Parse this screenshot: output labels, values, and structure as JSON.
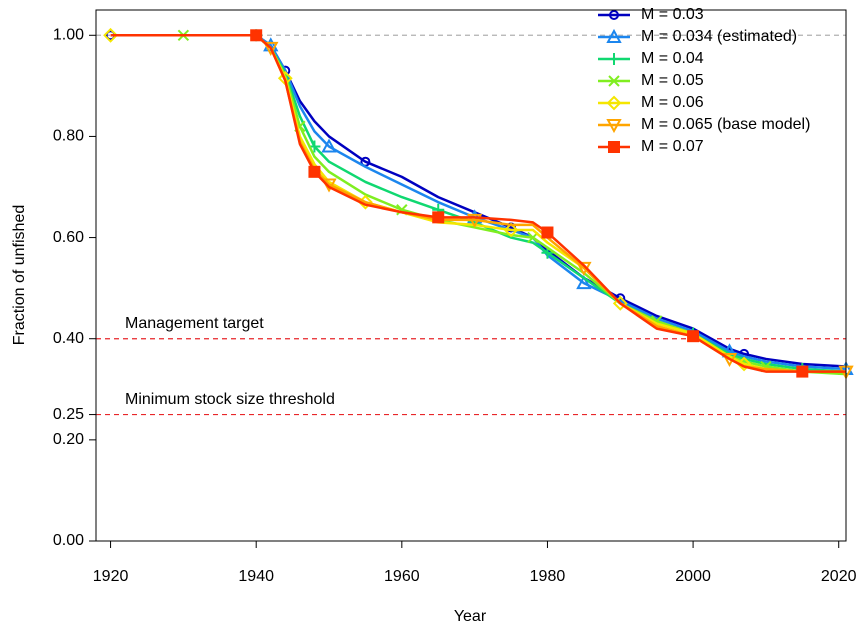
{
  "chart_data": {
    "type": "line",
    "x_label": "Year",
    "y_label": "Fraction of unfished",
    "xlim": [
      1918,
      2021
    ],
    "ylim": [
      0,
      1.05
    ],
    "xticks": [
      1920,
      1940,
      1960,
      1980,
      2000,
      2020
    ],
    "yticks": [
      {
        "value": 0,
        "label": "0.00"
      },
      {
        "value": 0.2,
        "label": "0.20"
      },
      {
        "value": 0.25,
        "label": "0.25"
      },
      {
        "value": 0.4,
        "label": "0.40"
      },
      {
        "value": 0.6,
        "label": "0.60"
      },
      {
        "value": 0.8,
        "label": "0.80"
      },
      {
        "value": 1,
        "label": "1.00"
      }
    ],
    "legend_location": "upper right",
    "hlines": [
      {
        "value": 1,
        "color": "#b0b0b0"
      },
      {
        "value": 0.4,
        "color": "#e8262a",
        "label": "Management target"
      },
      {
        "value": 0.25,
        "color": "#e8262a",
        "label": "Minimum stock size threshold"
      }
    ],
    "x": [
      1920,
      1930,
      1940,
      1942,
      1944,
      1946,
      1948,
      1950,
      1955,
      1960,
      1965,
      1970,
      1975,
      1978,
      1980,
      1985,
      1990,
      1995,
      2000,
      2005,
      2007,
      2010,
      2015,
      2021
    ],
    "series": [
      {
        "name": "M = 0.03",
        "color": "#0000c0",
        "marker": "circle",
        "values": [
          1,
          1,
          1,
          0.98,
          0.93,
          0.87,
          0.83,
          0.8,
          0.75,
          0.72,
          0.68,
          0.65,
          0.62,
          0.6,
          0.575,
          0.52,
          0.48,
          0.445,
          0.42,
          0.38,
          0.37,
          0.36,
          0.35,
          0.345
        ]
      },
      {
        "name": "M = 0.034 (estimated)",
        "color": "#1c86ee",
        "marker": "triangle",
        "values": [
          1,
          1,
          1,
          0.98,
          0.93,
          0.86,
          0.81,
          0.78,
          0.74,
          0.705,
          0.67,
          0.64,
          0.615,
          0.6,
          0.565,
          0.51,
          0.475,
          0.44,
          0.415,
          0.375,
          0.365,
          0.355,
          0.345,
          0.34
        ]
      },
      {
        "name": "M = 0.04",
        "color": "#10d870",
        "marker": "plus",
        "values": [
          1,
          1,
          1,
          0.975,
          0.925,
          0.84,
          0.78,
          0.75,
          0.71,
          0.68,
          0.655,
          0.63,
          0.6,
          0.59,
          0.57,
          0.52,
          0.47,
          0.435,
          0.41,
          0.37,
          0.36,
          0.35,
          0.34,
          0.335
        ]
      },
      {
        "name": "M = 0.05",
        "color": "#80ee20",
        "marker": "cross",
        "values": [
          1,
          1,
          1,
          0.975,
          0.92,
          0.82,
          0.76,
          0.73,
          0.685,
          0.655,
          0.635,
          0.62,
          0.605,
          0.6,
          0.58,
          0.53,
          0.47,
          0.435,
          0.41,
          0.365,
          0.355,
          0.345,
          0.335,
          0.33
        ]
      },
      {
        "name": "M = 0.06",
        "color": "#f5e600",
        "marker": "diamond",
        "values": [
          1,
          1,
          1,
          0.975,
          0.915,
          0.8,
          0.745,
          0.71,
          0.67,
          0.65,
          0.63,
          0.625,
          0.615,
          0.615,
          0.59,
          0.54,
          0.47,
          0.43,
          0.41,
          0.365,
          0.35,
          0.34,
          0.335,
          0.335
        ]
      },
      {
        "name": "M = 0.065 (base model)",
        "color": "#ffa500",
        "marker": "down-triangle",
        "values": [
          1,
          1,
          1,
          0.975,
          0.91,
          0.79,
          0.735,
          0.705,
          0.67,
          0.65,
          0.635,
          0.635,
          0.625,
          0.625,
          0.6,
          0.54,
          0.47,
          0.425,
          0.405,
          0.36,
          0.345,
          0.34,
          0.335,
          0.335
        ]
      },
      {
        "name": "M = 0.07",
        "color": "#ff3300",
        "marker": "square",
        "values": [
          1,
          1,
          1,
          0.975,
          0.91,
          0.785,
          0.73,
          0.7,
          0.665,
          0.65,
          0.64,
          0.64,
          0.635,
          0.63,
          0.61,
          0.545,
          0.47,
          0.42,
          0.405,
          0.36,
          0.345,
          0.335,
          0.335,
          0.335
        ]
      }
    ]
  }
}
